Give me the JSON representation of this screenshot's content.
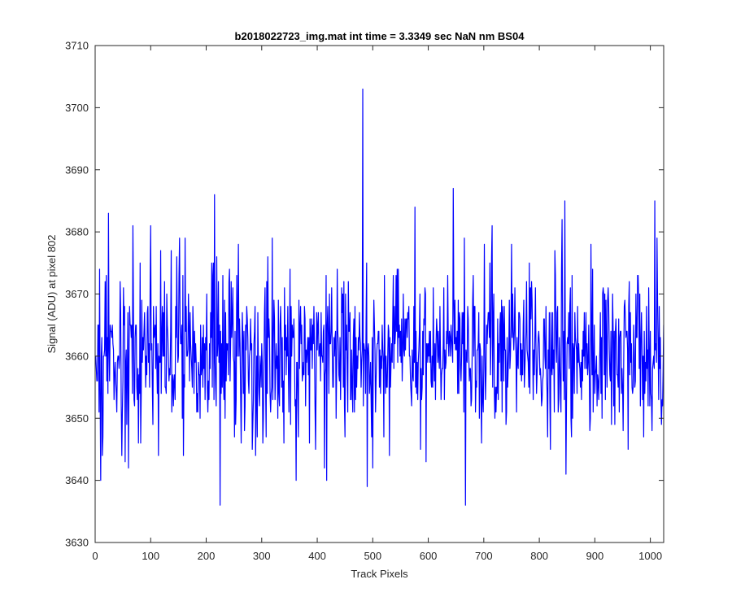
{
  "chart_data": {
    "type": "line",
    "title": "b2018022723_img.mat int time = 3.3349 sec  NaN nm BS04",
    "xlabel": "Track Pixels",
    "ylabel": "Signal (ADU) at pixel 802",
    "xlim": [
      0,
      1024
    ],
    "ylim": [
      3630,
      3710
    ],
    "xticks": [
      0,
      100,
      200,
      300,
      400,
      500,
      600,
      700,
      800,
      900,
      1000
    ],
    "yticks": [
      3630,
      3640,
      3650,
      3660,
      3670,
      3680,
      3690,
      3700,
      3710
    ],
    "grid": false,
    "legend": "none",
    "series": [
      {
        "color": "#0000ff",
        "generation": {
          "n_points": 1024,
          "mean": 3661,
          "noise_sd": 6.3,
          "seed": 20180227
        },
        "peaks": [
          {
            "x": 8,
            "y": 3674
          },
          {
            "x": 10,
            "y": 3640
          },
          {
            "x": 13,
            "y": 3644
          },
          {
            "x": 24,
            "y": 3683
          },
          {
            "x": 48,
            "y": 3644
          },
          {
            "x": 54,
            "y": 3643
          },
          {
            "x": 60,
            "y": 3642
          },
          {
            "x": 68,
            "y": 3681
          },
          {
            "x": 78,
            "y": 3646
          },
          {
            "x": 100,
            "y": 3681
          },
          {
            "x": 159,
            "y": 3644
          },
          {
            "x": 162,
            "y": 3679
          },
          {
            "x": 213,
            "y": 3675
          },
          {
            "x": 215,
            "y": 3686
          },
          {
            "x": 225,
            "y": 3636
          },
          {
            "x": 258,
            "y": 3678
          },
          {
            "x": 263,
            "y": 3646
          },
          {
            "x": 302,
            "y": 3646
          },
          {
            "x": 319,
            "y": 3679
          },
          {
            "x": 340,
            "y": 3646
          },
          {
            "x": 362,
            "y": 3640
          },
          {
            "x": 386,
            "y": 3646
          },
          {
            "x": 413,
            "y": 3642
          },
          {
            "x": 417,
            "y": 3640
          },
          {
            "x": 436,
            "y": 3674
          },
          {
            "x": 482,
            "y": 3703
          },
          {
            "x": 490,
            "y": 3639
          },
          {
            "x": 500,
            "y": 3642
          },
          {
            "x": 530,
            "y": 3644
          },
          {
            "x": 576,
            "y": 3684
          },
          {
            "x": 596,
            "y": 3643
          },
          {
            "x": 645,
            "y": 3687
          },
          {
            "x": 667,
            "y": 3636
          },
          {
            "x": 715,
            "y": 3681
          },
          {
            "x": 750,
            "y": 3678
          },
          {
            "x": 820,
            "y": 3645
          },
          {
            "x": 841,
            "y": 3682
          },
          {
            "x": 846,
            "y": 3685
          },
          {
            "x": 848,
            "y": 3641
          },
          {
            "x": 893,
            "y": 3678
          },
          {
            "x": 960,
            "y": 3645
          },
          {
            "x": 1008,
            "y": 3685
          },
          {
            "x": 1012,
            "y": 3679
          },
          {
            "x": 1020,
            "y": 3649
          },
          {
            "x": 1024,
            "y": 3665
          }
        ]
      }
    ]
  }
}
